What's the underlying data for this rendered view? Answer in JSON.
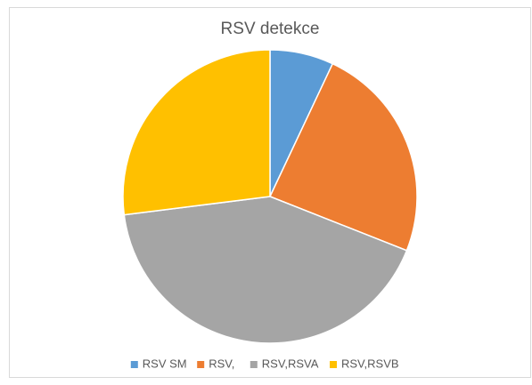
{
  "chart_data": {
    "type": "pie",
    "title": "RSV detekce",
    "categories": [
      "RSV SM",
      "RSV,",
      "RSV,RSVA",
      "RSV,RSVB"
    ],
    "values": [
      7,
      24,
      42,
      27
    ],
    "colors": [
      "#5b9bd5",
      "#ed7d31",
      "#a5a5a5",
      "#ffc000"
    ],
    "legend": "bottom"
  }
}
